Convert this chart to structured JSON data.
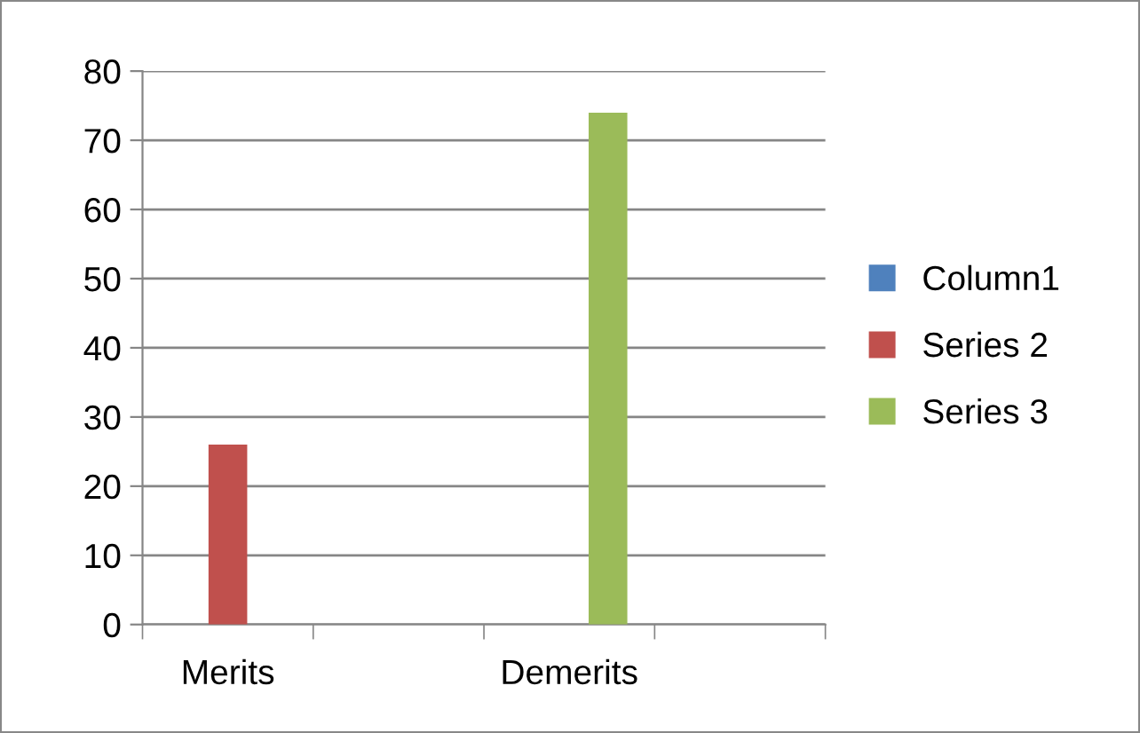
{
  "chart_data": {
    "type": "bar",
    "categories": [
      "Merits",
      null,
      "Demerits",
      null
    ],
    "series": [
      {
        "name": "Column1",
        "color": "#4f81bd",
        "values": [
          null,
          null,
          null,
          null
        ]
      },
      {
        "name": "Series 2",
        "color": "#c0504d",
        "values": [
          26,
          null,
          null,
          null
        ]
      },
      {
        "name": "Series 3",
        "color": "#9bbb59",
        "values": [
          null,
          null,
          74,
          null
        ]
      }
    ],
    "ylim": [
      0,
      80
    ],
    "yticks": [
      0,
      10,
      20,
      30,
      40,
      50,
      60,
      70,
      80
    ],
    "grid": "y",
    "legend": "right"
  }
}
